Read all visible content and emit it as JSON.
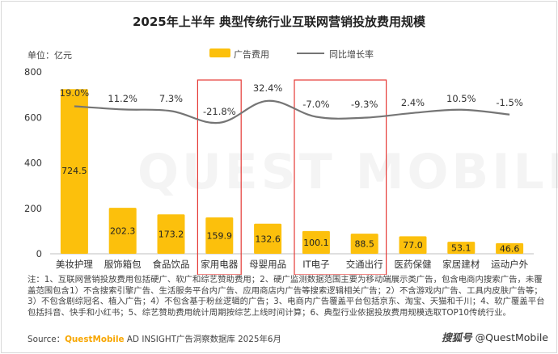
{
  "title": "2025年上半年 典型传统行业互联网营销投放费用规模",
  "unit_label": "单位：亿元",
  "legend": {
    "bar": "广告费用",
    "line": "同比增长率"
  },
  "colors": {
    "bar": "#fcc00c",
    "line": "#757575",
    "highlight": "#e53935"
  },
  "chart_data": {
    "type": "bar",
    "categories": [
      "美妆护理",
      "服饰箱包",
      "食品饮品",
      "家用电器",
      "母婴用品",
      "IT电子",
      "交通出行",
      "医药保健",
      "家居建材",
      "运动户外"
    ],
    "series": [
      {
        "name": "广告费用",
        "type": "bar",
        "values": [
          724.5,
          202.3,
          173.2,
          159.9,
          132.6,
          100.1,
          88.5,
          77.0,
          53.1,
          46.6
        ],
        "labels": [
          "724.5",
          "202.3",
          "173.2",
          "159.9",
          "132.6",
          "100.1",
          "88.5",
          "77.0",
          "53.1",
          "46.6"
        ]
      },
      {
        "name": "同比增长率",
        "type": "line",
        "values": [
          19.0,
          11.2,
          7.3,
          -21.8,
          32.4,
          -7.0,
          -9.3,
          2.4,
          10.5,
          -1.5
        ],
        "labels": [
          "19.0%",
          "11.2%",
          "7.3%",
          "-21.8%",
          "32.4%",
          "-7.0%",
          "-9.3%",
          "2.4%",
          "10.5%",
          "-1.5%"
        ]
      }
    ],
    "yticks": [
      "800",
      "600",
      "400",
      "200",
      "0"
    ],
    "ylim": [
      0,
      800
    ],
    "highlighted_categories": [
      "家用电器",
      "IT电子",
      "交通出行"
    ]
  },
  "notes": "注：1、互联网营销投放费用包括硬广、软广和综艺赞助费用；2、硬广监测数据范围主要为移动端展示类广告，包含电商内搜索广告，未覆盖范围包含1）不含搜索引擎广告、生活服务平台内广告、应用商店内广告等搜索逻辑相关广告；2）不含游戏内广告、工具内皮肤广告等；3）不包含剧综冠名、植入广告；4）不包含基于粉丝逻辑的广告；3、电商内广告覆盖平台包括京东、淘宝、天猫和千川；4、软广覆盖平台包括抖音、快手和小红书；5、综艺赞助费用统计周期按综艺上线时间计算；6、典型行业依据投放费用规模选取TOP10传统行业。",
  "source": {
    "prefix": "Source：",
    "brand": "QuestMobile",
    "rest": " AD INSIGHT广告洞察数据库 2025年6月"
  },
  "watermark": "QUEST MOBILE",
  "credit": {
    "logo": "搜狐号",
    "handle": "@QuestMobile"
  }
}
